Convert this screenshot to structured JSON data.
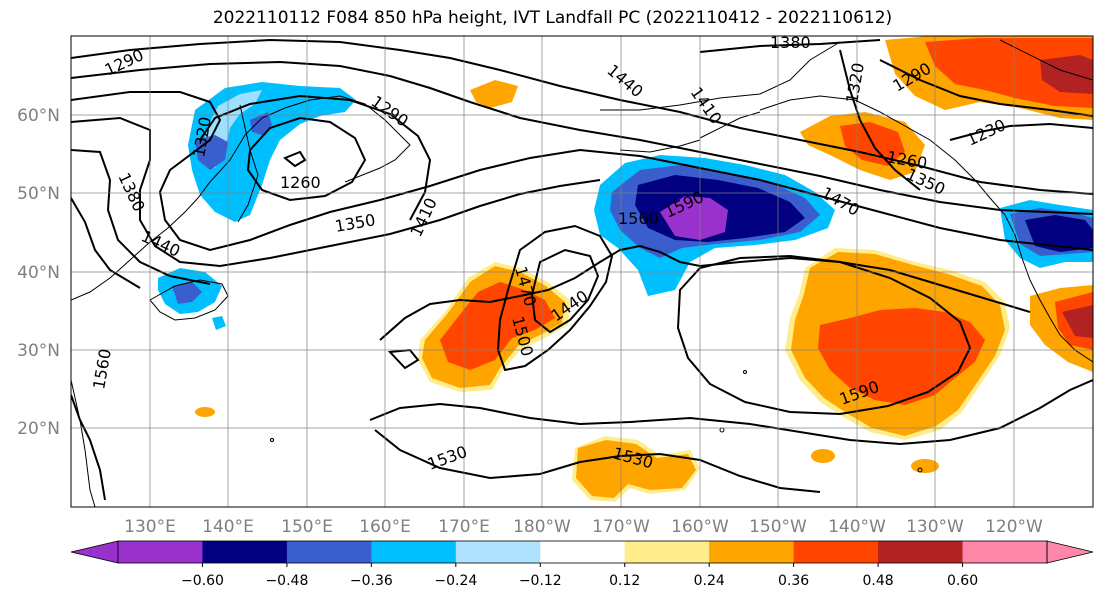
{
  "title": "2022110112 F084 850 hPa height, IVT Landfall PC (2022110412 - 2022110612)",
  "lat_labels": [
    "60°N",
    "50°N",
    "40°N",
    "30°N",
    "20°N"
  ],
  "lon_labels": [
    "130°E",
    "140°E",
    "150°E",
    "160°E",
    "170°E",
    "180°W",
    "170°W",
    "160°W",
    "150°W",
    "140°W",
    "130°W",
    "120°W"
  ],
  "contour_labels": [
    "1290",
    "1380",
    "1440",
    "1410",
    "1320",
    "1290",
    "1230",
    "1290",
    "1260",
    "1350",
    "1410",
    "1350",
    "1380",
    "1440",
    "1320",
    "1560",
    "1590",
    "1470",
    "1470",
    "1500",
    "1440",
    "1590",
    "1530",
    "1530",
    "1560",
    "1260"
  ],
  "colorbar": {
    "ticks": [
      "−0.60",
      "−0.48",
      "−0.36",
      "−0.24",
      "−0.12",
      "0.12",
      "0.24",
      "0.36",
      "0.48",
      "0.60"
    ],
    "colors": [
      "#9932CC",
      "#000080",
      "#3A5FCD",
      "#00BFFF",
      "#B0E2FF",
      "#FFFFFF",
      "#FFEC8B",
      "#FFA500",
      "#FF4500",
      "#B22222",
      "#FF88AA"
    ],
    "under_color": "#9932CC",
    "over_color": "#FF88AA"
  }
}
